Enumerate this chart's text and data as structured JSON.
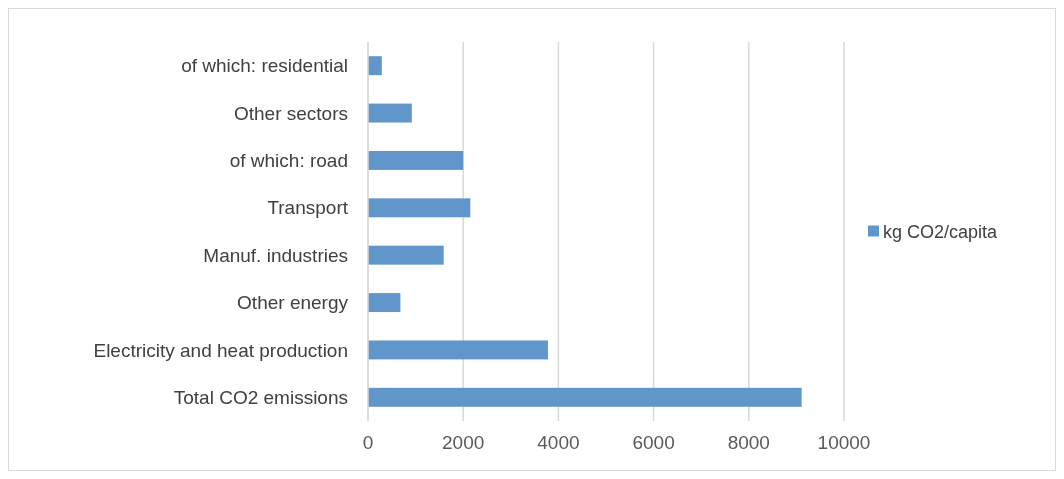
{
  "chart_data": {
    "type": "bar",
    "orientation": "horizontal",
    "categories": [
      "of which: residential",
      "Other sectors",
      "of which: road",
      "Transport",
      "Manuf. industries",
      "Other energy",
      "Electricity and heat production",
      "Total CO2 emissions"
    ],
    "series": [
      {
        "name": "kg CO2/capita",
        "color": "#6096c9",
        "values": [
          290,
          920,
          2000,
          2150,
          1590,
          680,
          3780,
          9110
        ]
      }
    ],
    "xlim": [
      0,
      10000
    ],
    "xticks": [
      0,
      2000,
      4000,
      6000,
      8000,
      10000
    ],
    "grid": "x",
    "legend": "right"
  }
}
